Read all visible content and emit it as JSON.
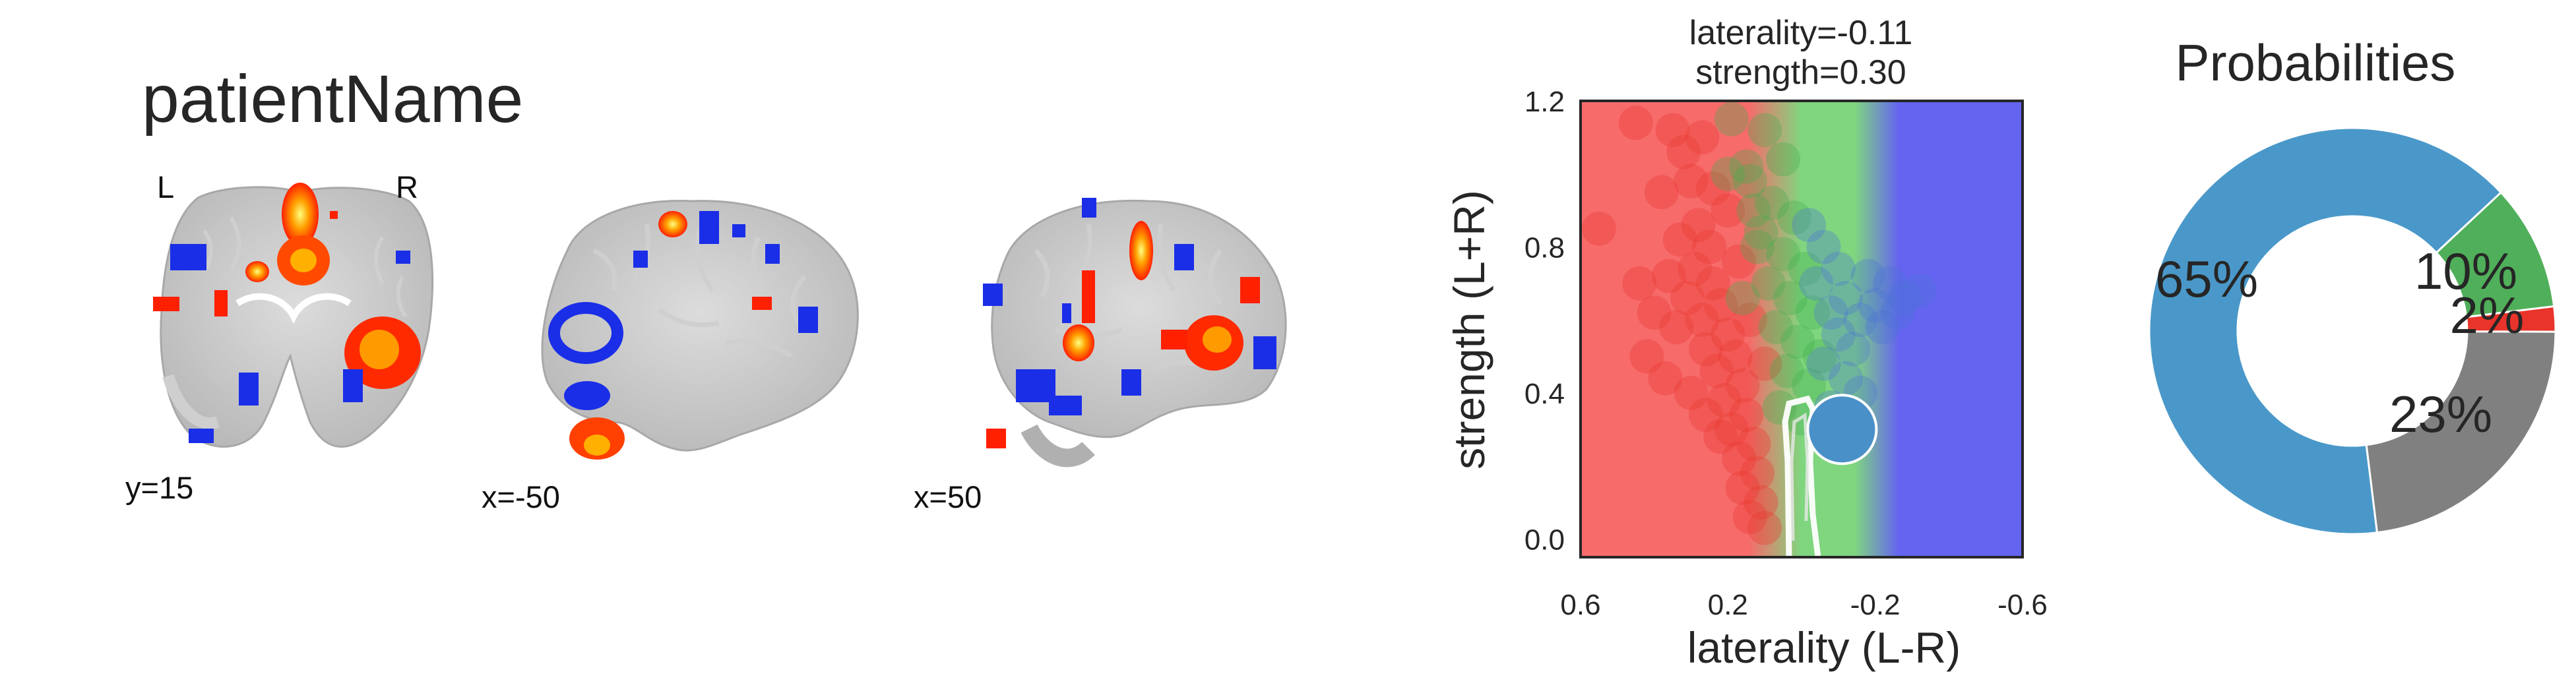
{
  "page": {
    "title": "patientName"
  },
  "brain_views": {
    "orientation_left": "L",
    "orientation_right": "R",
    "slices": [
      {
        "label": "y=15"
      },
      {
        "label": "x=-50"
      },
      {
        "label": "x=50"
      }
    ]
  },
  "chart_data": [
    {
      "type": "scatter",
      "title": "laterality=-0.11\nstrength=0.30",
      "title_lines": [
        "laterality=-0.11",
        "strength=0.30"
      ],
      "xlabel": "laterality (L-R)",
      "ylabel": "strength (L+R)",
      "xlim": [
        0.6,
        -0.6
      ],
      "ylim": [
        -0.05,
        1.2
      ],
      "xticks": [
        0.6,
        0.2,
        -0.2,
        -0.6
      ],
      "xtick_labels": [
        "0.6",
        "0.2",
        "-0.2",
        "-0.6"
      ],
      "yticks": [
        0.0,
        0.4,
        0.8,
        1.2
      ],
      "ytick_labels": [
        "0.0",
        "0.4",
        "0.8",
        "1.2"
      ],
      "background_regions": [
        {
          "name": "left",
          "color": "#f76b6b"
        },
        {
          "name": "bilateral",
          "color": "#7fd67f"
        },
        {
          "name": "right",
          "color": "#6464f0"
        }
      ],
      "patient_point": {
        "x": -0.11,
        "y": 0.3,
        "color": "#4a90c8"
      },
      "series": [
        {
          "color": "#e8342a",
          "points": [
            [
              0.45,
              1.14
            ],
            [
              0.35,
              1.12
            ],
            [
              0.32,
              1.06
            ],
            [
              0.38,
              0.95
            ],
            [
              0.3,
              0.98
            ],
            [
              0.28,
              0.86
            ],
            [
              0.33,
              0.82
            ],
            [
              0.25,
              0.8
            ],
            [
              0.29,
              0.74
            ],
            [
              0.24,
              0.7
            ],
            [
              0.31,
              0.66
            ],
            [
              0.22,
              0.64
            ],
            [
              0.27,
              0.6
            ],
            [
              0.2,
              0.56
            ],
            [
              0.26,
              0.52
            ],
            [
              0.18,
              0.5
            ],
            [
              0.23,
              0.46
            ],
            [
              0.16,
              0.42
            ],
            [
              0.21,
              0.38
            ],
            [
              0.15,
              0.34
            ],
            [
              0.19,
              0.3
            ],
            [
              0.13,
              0.26
            ],
            [
              0.17,
              0.22
            ],
            [
              0.12,
              0.18
            ],
            [
              0.16,
              0.14
            ],
            [
              0.11,
              0.1
            ],
            [
              0.14,
              0.06
            ],
            [
              0.1,
              0.03
            ],
            [
              0.36,
              0.72
            ],
            [
              0.34,
              0.58
            ],
            [
              0.4,
              0.62
            ],
            [
              0.42,
              0.5
            ],
            [
              0.37,
              0.44
            ],
            [
              0.3,
              0.4
            ],
            [
              0.26,
              0.34
            ],
            [
              0.22,
              0.28
            ],
            [
              0.55,
              0.85
            ],
            [
              0.44,
              0.7
            ],
            [
              0.27,
              1.1
            ],
            [
              0.2,
              0.9
            ],
            [
              0.17,
              0.76
            ],
            [
              0.14,
              0.6
            ],
            [
              0.1,
              0.48
            ],
            [
              0.24,
              0.96
            ]
          ]
        },
        {
          "color": "#3fae4a",
          "points": [
            [
              0.19,
              1.15
            ],
            [
              0.1,
              1.12
            ],
            [
              0.05,
              1.04
            ],
            [
              0.14,
              0.98
            ],
            [
              0.08,
              0.92
            ],
            [
              0.02,
              0.88
            ],
            [
              0.11,
              0.84
            ],
            [
              0.05,
              0.78
            ],
            [
              -0.01,
              0.74
            ],
            [
              0.09,
              0.7
            ],
            [
              0.03,
              0.66
            ],
            [
              -0.03,
              0.62
            ],
            [
              0.07,
              0.58
            ],
            [
              0.01,
              0.54
            ],
            [
              -0.05,
              0.5
            ],
            [
              0.04,
              0.46
            ],
            [
              -0.02,
              0.42
            ],
            [
              0.06,
              0.36
            ],
            [
              0.0,
              0.33
            ],
            [
              0.15,
              1.02
            ],
            [
              0.12,
              0.8
            ],
            [
              0.16,
              0.66
            ],
            [
              0.2,
              1.0
            ],
            [
              0.13,
              0.9
            ]
          ]
        },
        {
          "color": "#4a74d8",
          "points": [
            [
              -0.02,
              0.86
            ],
            [
              -0.06,
              0.8
            ],
            [
              -0.1,
              0.74
            ],
            [
              -0.04,
              0.7
            ],
            [
              -0.12,
              0.66
            ],
            [
              -0.08,
              0.62
            ],
            [
              -0.16,
              0.6
            ],
            [
              -0.2,
              0.64
            ],
            [
              -0.1,
              0.56
            ],
            [
              -0.14,
              0.52
            ],
            [
              -0.06,
              0.48
            ],
            [
              -0.24,
              0.7
            ],
            [
              -0.18,
              0.72
            ],
            [
              -0.28,
              0.66
            ],
            [
              -0.22,
              0.58
            ],
            [
              -0.32,
              0.68
            ],
            [
              -0.26,
              0.62
            ],
            [
              -0.12,
              0.44
            ],
            [
              -0.16,
              0.4
            ],
            [
              -0.08,
              0.36
            ]
          ]
        }
      ],
      "contour_color": "#ffffff"
    },
    {
      "type": "pie",
      "title": "Probabilities",
      "slices": [
        {
          "label": "65%",
          "value": 65,
          "color": "#4a98c9"
        },
        {
          "label": "23%",
          "value": 23,
          "color": "#808080"
        },
        {
          "label": "2%",
          "value": 2,
          "color": "#e8342a"
        },
        {
          "label": "10%",
          "value": 10,
          "color": "#50af5a"
        }
      ]
    }
  ]
}
